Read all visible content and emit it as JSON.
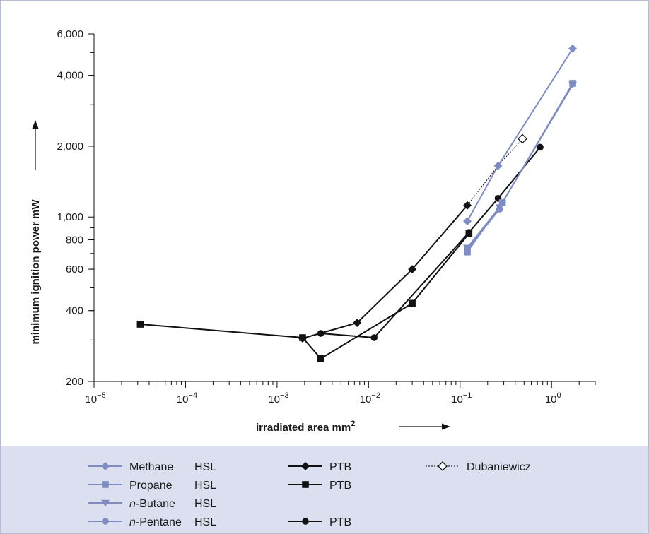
{
  "colors": {
    "hsl": "#7f8cc4",
    "ptb": "#111111",
    "legend_bg": "#dcdff0"
  },
  "chart_data": {
    "type": "line",
    "xlabel": "irradiated area mm",
    "xlabel_superscript": "2",
    "ylabel": "minimum ignition power mW",
    "xscale": "log",
    "yscale": "log",
    "xlim": [
      1e-05,
      3
    ],
    "ylim": [
      200,
      6000
    ],
    "grid": false,
    "legend_position": "bottom",
    "x_ticks": [
      {
        "value": 1e-05,
        "base": "10",
        "exp": "−5"
      },
      {
        "value": 0.0001,
        "base": "10",
        "exp": "−4"
      },
      {
        "value": 0.001,
        "base": "10",
        "exp": "−3"
      },
      {
        "value": 0.01,
        "base": "10",
        "exp": "−2"
      },
      {
        "value": 0.1,
        "base": "10",
        "exp": "−1"
      },
      {
        "value": 1,
        "base": "10",
        "exp": "0"
      }
    ],
    "y_ticks": [
      {
        "value": 200,
        "label": "200"
      },
      {
        "value": 400,
        "label": "400"
      },
      {
        "value": 600,
        "label": "600"
      },
      {
        "value": 800,
        "label": "800"
      },
      {
        "value": 1000,
        "label": "1,000"
      },
      {
        "value": 2000,
        "label": "2,000"
      },
      {
        "value": 4000,
        "label": "4,000"
      },
      {
        "value": 6000,
        "label": "6,000"
      }
    ],
    "series": [
      {
        "key": "methane_hsl",
        "color": "#7f8cc4",
        "marker": "diamond",
        "fill": true,
        "dash": false,
        "points": [
          [
            0.12,
            960
          ],
          [
            0.26,
            1650
          ],
          [
            1.7,
            5200
          ]
        ]
      },
      {
        "key": "propane_hsl",
        "color": "#7f8cc4",
        "marker": "square",
        "fill": true,
        "dash": false,
        "points": [
          [
            0.12,
            710
          ],
          [
            0.29,
            1150
          ],
          [
            1.7,
            3700
          ]
        ]
      },
      {
        "key": "butane_hsl",
        "color": "#7f8cc4",
        "marker": "triangle-down",
        "fill": true,
        "dash": false,
        "points": [
          [
            0.12,
            740
          ],
          [
            0.27,
            1100
          ],
          [
            1.7,
            3650
          ]
        ]
      },
      {
        "key": "pentane_hsl",
        "color": "#7f8cc4",
        "marker": "circle",
        "fill": true,
        "dash": false,
        "points": [
          [
            0.12,
            730
          ],
          [
            0.27,
            1080
          ]
        ]
      },
      {
        "key": "ptb_diamond",
        "color": "#111111",
        "marker": "diamond",
        "fill": true,
        "dash": false,
        "points": [
          [
            0.0019,
            305
          ],
          [
            0.0075,
            355
          ],
          [
            0.03,
            600
          ],
          [
            0.12,
            1120
          ]
        ]
      },
      {
        "key": "ptb_square",
        "color": "#111111",
        "marker": "square",
        "fill": true,
        "dash": false,
        "points": [
          [
            3.2e-05,
            350
          ],
          [
            0.0019,
            307
          ],
          [
            0.003,
            250
          ],
          [
            0.03,
            430
          ],
          [
            0.125,
            850
          ]
        ]
      },
      {
        "key": "ptb_circle",
        "color": "#111111",
        "marker": "circle",
        "fill": true,
        "dash": false,
        "points": [
          [
            0.003,
            320
          ],
          [
            0.0115,
            307
          ],
          [
            0.125,
            860
          ],
          [
            0.26,
            1200
          ],
          [
            0.75,
            1980
          ]
        ]
      },
      {
        "key": "dubaniewicz",
        "color": "#111111",
        "marker": "diamond",
        "fill": false,
        "dash": true,
        "points": [
          [
            0.12,
            1120
          ],
          [
            0.26,
            1650
          ],
          [
            0.48,
            2150
          ]
        ]
      }
    ]
  },
  "legend": [
    {
      "series": "methane_hsl",
      "col": 0,
      "row": 0,
      "name": "Methane",
      "name_italic_prefix": "",
      "source": "HSL"
    },
    {
      "series": "propane_hsl",
      "col": 0,
      "row": 1,
      "name": "Propane",
      "name_italic_prefix": "",
      "source": "HSL"
    },
    {
      "series": "butane_hsl",
      "col": 0,
      "row": 2,
      "name": "-Butane",
      "name_italic_prefix": "n",
      "source": "HSL"
    },
    {
      "series": "pentane_hsl",
      "col": 0,
      "row": 3,
      "name": "-Pentane",
      "name_italic_prefix": "n",
      "source": "HSL"
    },
    {
      "series": "ptb_diamond",
      "col": 1,
      "row": 0,
      "name": "",
      "name_italic_prefix": "",
      "source": "PTB"
    },
    {
      "series": "ptb_square",
      "col": 1,
      "row": 1,
      "name": "",
      "name_italic_prefix": "",
      "source": "PTB"
    },
    {
      "series": "ptb_circle",
      "col": 1,
      "row": 3,
      "name": "",
      "name_italic_prefix": "",
      "source": "PTB"
    },
    {
      "series": "dubaniewicz",
      "col": 2,
      "row": 0,
      "name": "Dubaniewicz",
      "name_italic_prefix": "",
      "source": ""
    }
  ]
}
